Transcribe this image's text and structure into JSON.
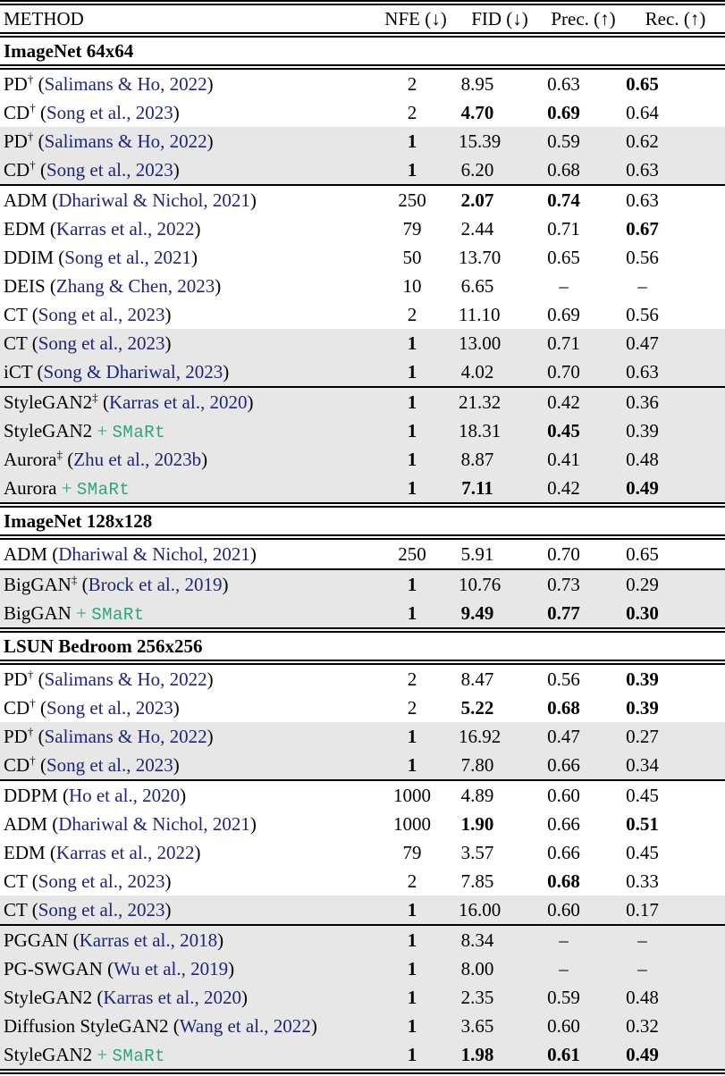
{
  "colors": {
    "text": "#000000",
    "citation_navy": "#212478",
    "smart_green": "#2ca380",
    "row_shade": "#e7e7e7",
    "rule_black": "#000000"
  },
  "labels": {
    "plus": "+",
    "smart": "SMaRt"
  },
  "table": {
    "columns": [
      "METHOD",
      "NFE (↓)",
      "FID (↓)",
      "Prec. (↑)",
      "Rec. (↑)"
    ],
    "sections": [
      {
        "title": "ImageNet 64x64",
        "groups": [
          [
            {
              "method": "PD",
              "sup": "†",
              "cite": "Salimans & Ho, 2022",
              "shaded": false,
              "values": [
                [
                  "2",
                  0
                ],
                [
                  "8.95",
                  0
                ],
                [
                  "0.63",
                  0
                ],
                [
                  "0.65",
                  1
                ]
              ]
            },
            {
              "method": "CD",
              "sup": "†",
              "cite": "Song et al., 2023",
              "shaded": false,
              "values": [
                [
                  "2",
                  0
                ],
                [
                  "4.70",
                  1
                ],
                [
                  "0.69",
                  1
                ],
                [
                  "0.64",
                  0
                ]
              ]
            },
            {
              "method": "PD",
              "sup": "†",
              "cite": "Salimans & Ho, 2022",
              "shaded": true,
              "values": [
                [
                  "1",
                  1
                ],
                [
                  "15.39",
                  0
                ],
                [
                  "0.59",
                  0
                ],
                [
                  "0.62",
                  0
                ]
              ]
            },
            {
              "method": "CD",
              "sup": "†",
              "cite": "Song et al., 2023",
              "shaded": true,
              "values": [
                [
                  "1",
                  1
                ],
                [
                  "6.20",
                  0
                ],
                [
                  "0.68",
                  0
                ],
                [
                  "0.63",
                  0
                ]
              ]
            }
          ],
          [
            {
              "method": "ADM",
              "cite": "Dhariwal & Nichol, 2021",
              "shaded": false,
              "values": [
                [
                  "250",
                  0
                ],
                [
                  "2.07",
                  1
                ],
                [
                  "0.74",
                  1
                ],
                [
                  "0.63",
                  0
                ]
              ]
            },
            {
              "method": "EDM",
              "cite": "Karras et al., 2022",
              "shaded": false,
              "values": [
                [
                  "79",
                  0
                ],
                [
                  "2.44",
                  0
                ],
                [
                  "0.71",
                  0
                ],
                [
                  "0.67",
                  1
                ]
              ]
            },
            {
              "method": "DDIM",
              "cite": "Song et al., 2021",
              "shaded": false,
              "values": [
                [
                  "50",
                  0
                ],
                [
                  "13.70",
                  0
                ],
                [
                  "0.65",
                  0
                ],
                [
                  "0.56",
                  0
                ]
              ]
            },
            {
              "method": "DEIS",
              "cite": "Zhang & Chen, 2023",
              "shaded": false,
              "values": [
                [
                  "10",
                  0
                ],
                [
                  "6.65",
                  0
                ],
                [
                  "–",
                  0
                ],
                [
                  "–",
                  0
                ]
              ]
            },
            {
              "method": "CT",
              "cite": "Song et al., 2023",
              "shaded": false,
              "values": [
                [
                  "2",
                  0
                ],
                [
                  "11.10",
                  0
                ],
                [
                  "0.69",
                  0
                ],
                [
                  "0.56",
                  0
                ]
              ]
            },
            {
              "method": "CT",
              "cite": "Song et al., 2023",
              "shaded": true,
              "values": [
                [
                  "1",
                  1
                ],
                [
                  "13.00",
                  0
                ],
                [
                  "0.71",
                  0
                ],
                [
                  "0.47",
                  0
                ]
              ]
            },
            {
              "method": "iCT",
              "cite": "Song & Dhariwal, 2023",
              "shaded": true,
              "values": [
                [
                  "1",
                  1
                ],
                [
                  "4.02",
                  0
                ],
                [
                  "0.70",
                  0
                ],
                [
                  "0.63",
                  0
                ]
              ]
            }
          ],
          [
            {
              "method": "StyleGAN2",
              "sup": "‡",
              "cite": "Karras et al., 2020",
              "shaded": true,
              "values": [
                [
                  "1",
                  1
                ],
                [
                  "21.32",
                  0
                ],
                [
                  "0.42",
                  0
                ],
                [
                  "0.36",
                  0
                ]
              ]
            },
            {
              "method": "StyleGAN2",
              "smart": true,
              "shaded": true,
              "values": [
                [
                  "1",
                  1
                ],
                [
                  "18.31",
                  0
                ],
                [
                  "0.45",
                  1
                ],
                [
                  "0.39",
                  0
                ]
              ]
            },
            {
              "method": "Aurora",
              "sup": "‡",
              "cite": "Zhu et al., 2023b",
              "shaded": true,
              "values": [
                [
                  "1",
                  1
                ],
                [
                  "8.87",
                  0
                ],
                [
                  "0.41",
                  0
                ],
                [
                  "0.48",
                  0
                ]
              ]
            },
            {
              "method": "Aurora",
              "smart": true,
              "shaded": true,
              "values": [
                [
                  "1",
                  1
                ],
                [
                  "7.11",
                  1
                ],
                [
                  "0.42",
                  0
                ],
                [
                  "0.49",
                  1
                ]
              ]
            }
          ]
        ]
      },
      {
        "title": "ImageNet 128x128",
        "groups": [
          [
            {
              "method": "ADM",
              "cite": "Dhariwal & Nichol, 2021",
              "shaded": false,
              "values": [
                [
                  "250",
                  0
                ],
                [
                  "5.91",
                  0
                ],
                [
                  "0.70",
                  0
                ],
                [
                  "0.65",
                  0
                ]
              ]
            }
          ],
          [
            {
              "method": "BigGAN",
              "sup": "‡",
              "cite": "Brock et al., 2019",
              "shaded": true,
              "values": [
                [
                  "1",
                  1
                ],
                [
                  "10.76",
                  0
                ],
                [
                  "0.73",
                  0
                ],
                [
                  "0.29",
                  0
                ]
              ]
            },
            {
              "method": "BigGAN",
              "smart": true,
              "shaded": true,
              "values": [
                [
                  "1",
                  1
                ],
                [
                  "9.49",
                  1
                ],
                [
                  "0.77",
                  1
                ],
                [
                  "0.30",
                  1
                ]
              ]
            }
          ]
        ]
      },
      {
        "title": "LSUN Bedroom 256x256",
        "groups": [
          [
            {
              "method": "PD",
              "sup": "†",
              "cite": "Salimans & Ho, 2022",
              "shaded": false,
              "values": [
                [
                  "2",
                  0
                ],
                [
                  "8.47",
                  0
                ],
                [
                  "0.56",
                  0
                ],
                [
                  "0.39",
                  1
                ]
              ]
            },
            {
              "method": "CD",
              "sup": "†",
              "cite": "Song et al., 2023",
              "shaded": false,
              "values": [
                [
                  "2",
                  0
                ],
                [
                  "5.22",
                  1
                ],
                [
                  "0.68",
                  1
                ],
                [
                  "0.39",
                  1
                ]
              ]
            },
            {
              "method": "PD",
              "sup": "†",
              "cite": "Salimans & Ho, 2022",
              "shaded": true,
              "values": [
                [
                  "1",
                  1
                ],
                [
                  "16.92",
                  0
                ],
                [
                  "0.47",
                  0
                ],
                [
                  "0.27",
                  0
                ]
              ]
            },
            {
              "method": "CD",
              "sup": "†",
              "cite": "Song et al., 2023",
              "shaded": true,
              "values": [
                [
                  "1",
                  1
                ],
                [
                  "7.80",
                  0
                ],
                [
                  "0.66",
                  0
                ],
                [
                  "0.34",
                  0
                ]
              ]
            }
          ],
          [
            {
              "method": "DDPM",
              "cite": "Ho et al., 2020",
              "shaded": false,
              "values": [
                [
                  "1000",
                  0
                ],
                [
                  "4.89",
                  0
                ],
                [
                  "0.60",
                  0
                ],
                [
                  "0.45",
                  0
                ]
              ]
            },
            {
              "method": "ADM",
              "cite": "Dhariwal & Nichol, 2021",
              "shaded": false,
              "values": [
                [
                  "1000",
                  0
                ],
                [
                  "1.90",
                  1
                ],
                [
                  "0.66",
                  0
                ],
                [
                  "0.51",
                  1
                ]
              ]
            },
            {
              "method": "EDM",
              "cite": "Karras et al., 2022",
              "shaded": false,
              "values": [
                [
                  "79",
                  0
                ],
                [
                  "3.57",
                  0
                ],
                [
                  "0.66",
                  0
                ],
                [
                  "0.45",
                  0
                ]
              ]
            },
            {
              "method": "CT",
              "cite": "Song et al., 2023",
              "shaded": false,
              "values": [
                [
                  "2",
                  0
                ],
                [
                  "7.85",
                  0
                ],
                [
                  "0.68",
                  1
                ],
                [
                  "0.33",
                  0
                ]
              ]
            },
            {
              "method": "CT",
              "cite": "Song et al., 2023",
              "shaded": true,
              "values": [
                [
                  "1",
                  1
                ],
                [
                  "16.00",
                  0
                ],
                [
                  "0.60",
                  0
                ],
                [
                  "0.17",
                  0
                ]
              ]
            }
          ],
          [
            {
              "method": "PGGAN",
              "cite": "Karras et al., 2018",
              "shaded": true,
              "values": [
                [
                  "1",
                  1
                ],
                [
                  "8.34",
                  0
                ],
                [
                  "–",
                  0
                ],
                [
                  "–",
                  0
                ]
              ]
            },
            {
              "method": "PG-SWGAN",
              "cite": "Wu et al., 2019",
              "shaded": true,
              "values": [
                [
                  "1",
                  1
                ],
                [
                  "8.00",
                  0
                ],
                [
                  "–",
                  0
                ],
                [
                  "–",
                  0
                ]
              ]
            },
            {
              "method": "StyleGAN2",
              "cite": "Karras et al., 2020",
              "shaded": true,
              "values": [
                [
                  "1",
                  1
                ],
                [
                  "2.35",
                  0
                ],
                [
                  "0.59",
                  0
                ],
                [
                  "0.48",
                  0
                ]
              ]
            },
            {
              "method": "Diffusion StyleGAN2",
              "cite": "Wang et al., 2022",
              "shaded": true,
              "values": [
                [
                  "1",
                  1
                ],
                [
                  "3.65",
                  0
                ],
                [
                  "0.60",
                  0
                ],
                [
                  "0.32",
                  0
                ]
              ]
            },
            {
              "method": "StyleGAN2",
              "smart": true,
              "shaded": true,
              "values": [
                [
                  "1",
                  1
                ],
                [
                  "1.98",
                  1
                ],
                [
                  "0.61",
                  1
                ],
                [
                  "0.49",
                  1
                ]
              ]
            }
          ]
        ]
      }
    ]
  }
}
